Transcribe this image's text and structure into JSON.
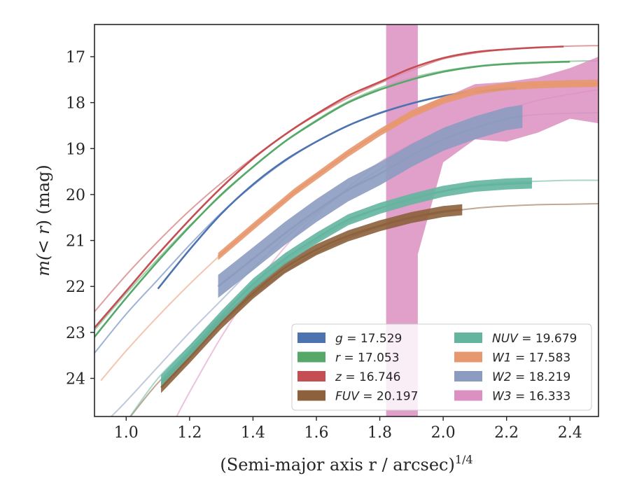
{
  "chart_data": {
    "type": "line",
    "xlabel": "(Semi-major axis r / arcsec)",
    "xlabel_exp": "1/4",
    "ylabel_prefix": "m(",
    "ylabel_math": "< r",
    "ylabel_suffix": ") (mag)",
    "xlim": [
      0.9,
      2.49
    ],
    "ylim": [
      24.83,
      16.3
    ],
    "y_inverted": true,
    "grid": false,
    "legend_position": "lower-right",
    "x_ticks": [
      {
        "value": 1.0,
        "label": "1.0"
      },
      {
        "value": 1.2,
        "label": "1.2"
      },
      {
        "value": 1.4,
        "label": "1.4"
      },
      {
        "value": 1.6,
        "label": "1.6"
      },
      {
        "value": 1.8,
        "label": "1.8"
      },
      {
        "value": 2.0,
        "label": "2.0"
      },
      {
        "value": 2.2,
        "label": "2.2"
      },
      {
        "value": 2.4,
        "label": "2.4"
      }
    ],
    "y_ticks": [
      {
        "value": 17,
        "label": "17"
      },
      {
        "value": 18,
        "label": "18"
      },
      {
        "value": 19,
        "label": "19"
      },
      {
        "value": 20,
        "label": "20"
      },
      {
        "value": 21,
        "label": "21"
      },
      {
        "value": 22,
        "label": "22"
      },
      {
        "value": 23,
        "label": "23"
      },
      {
        "value": 24,
        "label": "24"
      }
    ],
    "series": [
      {
        "key": "g",
        "var": "g",
        "value": "17.529",
        "color": "#4c72b0",
        "data": {
          "x": [
            1.1,
            1.2,
            1.3,
            1.4,
            1.5,
            1.6,
            1.7,
            1.8,
            1.9,
            2.0,
            2.1,
            2.2,
            2.23
          ],
          "y": [
            22.05,
            21.2,
            20.42,
            19.78,
            19.26,
            18.85,
            18.5,
            18.23,
            18.02,
            17.86,
            17.76,
            17.7,
            17.69
          ]
        },
        "band": 0.05,
        "model": {
          "x": [
            0.9,
            1.0,
            1.1,
            1.2,
            1.3,
            1.4,
            1.5,
            1.6,
            1.7,
            1.8,
            1.9,
            2.0,
            2.1,
            2.2,
            2.3,
            2.4,
            2.49
          ],
          "y": [
            23.45,
            22.6,
            21.85,
            21.1,
            20.4,
            19.8,
            19.28,
            18.85,
            18.5,
            18.22,
            18.01,
            17.85,
            17.74,
            17.67,
            17.62,
            17.6,
            17.59
          ]
        }
      },
      {
        "key": "r",
        "var": "r",
        "value": "17.053",
        "color": "#55a868",
        "data": {
          "x": [
            0.9,
            1.0,
            1.1,
            1.2,
            1.3,
            1.4,
            1.5,
            1.6,
            1.7,
            1.8,
            1.9,
            2.0,
            2.1,
            2.2,
            2.3,
            2.4
          ],
          "y": [
            23.1,
            22.25,
            21.45,
            20.7,
            20.0,
            19.4,
            18.85,
            18.4,
            18.0,
            17.72,
            17.5,
            17.33,
            17.22,
            17.16,
            17.13,
            17.11
          ]
        },
        "band": 0.05,
        "model": {
          "x": [
            0.9,
            1.0,
            1.1,
            1.2,
            1.3,
            1.4,
            1.5,
            1.6,
            1.7,
            1.8,
            1.9,
            2.0,
            2.1,
            2.2,
            2.3,
            2.4,
            2.49
          ],
          "y": [
            22.95,
            22.15,
            21.4,
            20.68,
            20.02,
            19.4,
            18.85,
            18.38,
            17.98,
            17.68,
            17.46,
            17.31,
            17.21,
            17.15,
            17.12,
            17.1,
            17.09
          ]
        }
      },
      {
        "key": "z",
        "var": "z",
        "value": "16.746",
        "color": "#c44e52",
        "data": {
          "x": [
            0.9,
            1.0,
            1.1,
            1.2,
            1.3,
            1.4,
            1.5,
            1.6,
            1.7,
            1.8,
            1.9,
            2.0,
            2.1,
            2.2,
            2.3,
            2.38
          ],
          "y": [
            22.9,
            22.1,
            21.3,
            20.55,
            19.85,
            19.22,
            18.7,
            18.25,
            17.85,
            17.55,
            17.25,
            17.03,
            16.9,
            16.84,
            16.8,
            16.78
          ]
        },
        "band": 0.05,
        "model": {
          "x": [
            0.9,
            1.0,
            1.1,
            1.2,
            1.3,
            1.4,
            1.5,
            1.6,
            1.7,
            1.8,
            1.9,
            2.0,
            2.1,
            2.2,
            2.3,
            2.4,
            2.49
          ],
          "y": [
            22.55,
            21.75,
            21.02,
            20.35,
            19.75,
            19.2,
            18.7,
            18.27,
            17.9,
            17.58,
            17.3,
            17.05,
            16.92,
            16.84,
            16.8,
            16.77,
            16.76
          ]
        }
      },
      {
        "key": "FUV",
        "var": "FUV",
        "value": "20.197",
        "color": "#8c613c",
        "data": {
          "x": [
            1.11,
            1.2,
            1.3,
            1.4,
            1.5,
            1.6,
            1.7,
            1.8,
            1.9,
            2.0,
            2.06
          ],
          "y": [
            24.2,
            23.55,
            22.8,
            22.15,
            21.6,
            21.2,
            20.9,
            20.68,
            20.5,
            20.37,
            20.33
          ]
        },
        "band": 0.12,
        "model": {
          "x": [
            1.0,
            1.1,
            1.2,
            1.3,
            1.4,
            1.5,
            1.6,
            1.7,
            1.8,
            1.9,
            2.0,
            2.1,
            2.2,
            2.3,
            2.4,
            2.49
          ],
          "y": [
            24.95,
            24.1,
            23.45,
            22.8,
            22.2,
            21.68,
            21.27,
            20.95,
            20.7,
            20.52,
            20.39,
            20.3,
            20.25,
            20.22,
            20.21,
            20.2
          ]
        }
      },
      {
        "key": "NUV",
        "var": "NUV",
        "value": "19.679",
        "color": "#64b5a0",
        "data": {
          "x": [
            1.11,
            1.2,
            1.3,
            1.4,
            1.5,
            1.6,
            1.7,
            1.8,
            1.9,
            2.0,
            2.1,
            2.2,
            2.28
          ],
          "y": [
            24.05,
            23.4,
            22.65,
            21.95,
            21.4,
            20.95,
            20.55,
            20.3,
            20.1,
            19.93,
            19.82,
            19.77,
            19.75
          ]
        },
        "band": 0.12,
        "model": {
          "x": [
            1.0,
            1.1,
            1.2,
            1.3,
            1.4,
            1.5,
            1.6,
            1.7,
            1.8,
            1.9,
            2.0,
            2.1,
            2.2,
            2.3,
            2.4,
            2.49
          ],
          "y": [
            24.95,
            24.0,
            23.3,
            22.62,
            22.0,
            21.45,
            21.0,
            20.6,
            20.3,
            20.08,
            19.92,
            19.8,
            19.74,
            19.71,
            19.69,
            19.69
          ]
        }
      },
      {
        "key": "W1",
        "var": "W1",
        "value": "17.583",
        "color": "#e8986e",
        "data": {
          "x": [
            1.29,
            1.4,
            1.53,
            1.6,
            1.7,
            1.8,
            1.9,
            2.0,
            2.1,
            2.2,
            2.3,
            2.4,
            2.49
          ],
          "y": [
            21.35,
            20.7,
            19.95,
            19.6,
            19.1,
            18.65,
            18.25,
            17.95,
            17.75,
            17.65,
            17.61,
            17.59,
            17.58
          ]
        },
        "band": 0.08,
        "model": {
          "x": [
            0.92,
            1.0,
            1.1,
            1.2,
            1.3,
            1.4,
            1.5,
            1.6,
            1.7,
            1.8,
            1.9,
            2.0,
            2.1,
            2.2,
            2.3,
            2.4,
            2.49
          ],
          "y": [
            24.05,
            23.4,
            22.65,
            21.95,
            21.3,
            20.7,
            20.15,
            19.6,
            19.1,
            18.65,
            18.25,
            17.95,
            17.76,
            17.66,
            17.61,
            17.59,
            17.58
          ]
        }
      },
      {
        "key": "W2",
        "var": "W2",
        "value": "18.219",
        "color": "#8c9cc0",
        "data": {
          "x": [
            1.29,
            1.4,
            1.5,
            1.6,
            1.7,
            1.8,
            1.9,
            2.0,
            2.1,
            2.2,
            2.25
          ],
          "y": [
            22.0,
            21.4,
            20.85,
            20.35,
            19.9,
            19.55,
            19.15,
            18.8,
            18.55,
            18.35,
            18.3
          ]
        },
        "band": 0.25,
        "model": {
          "x": [
            0.95,
            1.0,
            1.1,
            1.2,
            1.3,
            1.4,
            1.5,
            1.6,
            1.7,
            1.8,
            1.9,
            2.0,
            2.1,
            2.2,
            2.3,
            2.4,
            2.49
          ],
          "y": [
            24.85,
            24.5,
            23.75,
            23.0,
            22.3,
            21.6,
            20.95,
            20.4,
            19.9,
            19.45,
            19.05,
            18.72,
            18.48,
            18.33,
            18.26,
            18.23,
            18.22
          ]
        }
      },
      {
        "key": "W3",
        "var": "W3",
        "value": "16.333",
        "color": "#dc8fc1",
        "data": {
          "x": [
            1.82,
            1.92,
            1.92,
            2.0,
            2.1,
            2.2,
            2.3,
            2.4,
            2.49
          ],
          "y_lo": [
            24.83,
            24.83,
            21.3,
            19.3,
            18.8,
            18.85,
            18.65,
            18.35,
            18.45
          ],
          "y_hi": [
            16.3,
            16.3,
            18.1,
            17.9,
            17.6,
            17.55,
            17.45,
            17.25,
            17.0
          ]
        },
        "model": {
          "x": [
            1.15,
            1.2,
            1.3,
            1.4,
            1.5,
            1.6,
            1.7,
            1.8,
            1.9,
            2.0,
            2.1,
            2.2,
            2.3,
            2.4,
            2.49
          ],
          "y": [
            24.95,
            24.3,
            23.1,
            22.05,
            21.15,
            20.45,
            19.85,
            19.3,
            18.9,
            18.6,
            18.35,
            18.15,
            17.95,
            17.82,
            17.72
          ]
        }
      }
    ],
    "legend": [
      {
        "key": "g",
        "var": "g",
        "value": "17.529",
        "color": "#4c72b0"
      },
      {
        "key": "r",
        "var": "r",
        "value": "17.053",
        "color": "#55a868"
      },
      {
        "key": "z",
        "var": "z",
        "value": "16.746",
        "color": "#c44e52"
      },
      {
        "key": "FUV",
        "var": "FUV",
        "value": "20.197",
        "color": "#8c613c"
      },
      {
        "key": "NUV",
        "var": "NUV",
        "value": "19.679",
        "color": "#64b5a0"
      },
      {
        "key": "W1",
        "var": "W1",
        "value": "17.583",
        "color": "#e8986e"
      },
      {
        "key": "W2",
        "var": "W2",
        "value": "18.219",
        "color": "#8c9cc0"
      },
      {
        "key": "W3",
        "var": "W3",
        "value": "16.333",
        "color": "#dc8fc1"
      }
    ]
  }
}
